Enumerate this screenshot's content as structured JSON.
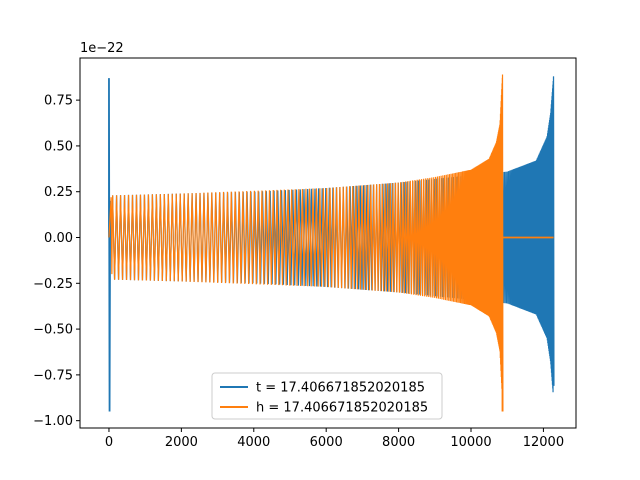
{
  "chart_data": {
    "type": "line",
    "title": "",
    "xlabel": "",
    "ylabel": "",
    "offset_label": "1e−22",
    "xlim": [
      -800,
      12900
    ],
    "ylim": [
      -1.04e-22,
      9.8e-23
    ],
    "xticks": [
      0,
      2000,
      4000,
      6000,
      8000,
      10000,
      12000
    ],
    "xtick_labels": [
      "0",
      "2000",
      "4000",
      "6000",
      "8000",
      "10000",
      "12000"
    ],
    "yticks": [
      -1e-22,
      -7.5e-23,
      -5e-23,
      -2.5e-23,
      0,
      2.5e-23,
      5e-23,
      7.5e-23
    ],
    "ytick_labels": [
      "−1.00",
      "−0.75",
      "−0.50",
      "−0.25",
      "0.00",
      "0.25",
      "0.50",
      "0.75"
    ],
    "legend_position": "lower-center",
    "grid": false,
    "series": [
      {
        "name": "t = 17.406671852020185",
        "color": "#1f77b4",
        "x_start": 0,
        "x_end": 12280,
        "spike_x": 0,
        "spike_max": 8.7e-23,
        "spike_min": -9.5e-23,
        "envelope": {
          "x": [
            100,
            2000,
            4000,
            6000,
            8000,
            10000,
            11000,
            11800,
            12100,
            12200,
            12280
          ],
          "amplitude": [
            2.3e-23,
            2.4e-23,
            2.5e-23,
            2.7e-23,
            3e-23,
            3.4e-23,
            3.6e-23,
            4.2e-23,
            5.5e-23,
            6.8e-23,
            8.8e-23
          ]
        },
        "final_min": -8.1e-23
      },
      {
        "name": "h = 17.406671852020185",
        "color": "#ff7f0e",
        "x_start": 0,
        "x_end": 12280,
        "chirp_end_x": 10870,
        "envelope": {
          "x": [
            100,
            2000,
            4000,
            6000,
            8000,
            9000,
            10000,
            10500,
            10700,
            10800,
            10870
          ],
          "amplitude": [
            2.3e-23,
            2.4e-23,
            2.55e-23,
            2.7e-23,
            3e-23,
            3.3e-23,
            3.7e-23,
            4.3e-23,
            5.2e-23,
            6.2e-23,
            8.9e-23
          ]
        },
        "final_min": -9.5e-23,
        "post_value": 0
      }
    ]
  }
}
